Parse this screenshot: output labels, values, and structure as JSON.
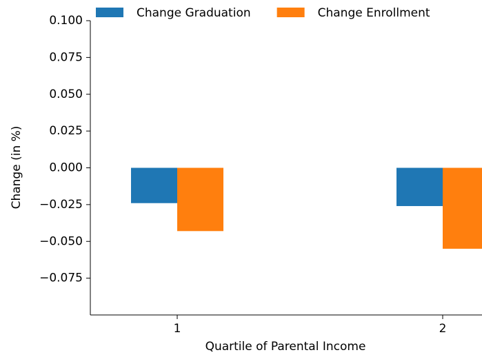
{
  "chart_data": {
    "type": "bar",
    "x_label": "Quartile of Parental Income",
    "y_label": "Change (in %)",
    "categories": [
      "1",
      "2"
    ],
    "series": [
      {
        "name": "Change Graduation",
        "color": "#1f77b4",
        "values": [
          -0.024,
          -0.026
        ]
      },
      {
        "name": "Change Enrollment",
        "color": "#ff7f0e",
        "values": [
          -0.043,
          -0.055
        ]
      }
    ],
    "ylim": [
      -0.1,
      0.1
    ],
    "yticks": [
      {
        "value": 0.1,
        "label": "0.100"
      },
      {
        "value": 0.075,
        "label": "0.075"
      },
      {
        "value": 0.05,
        "label": "0.050"
      },
      {
        "value": 0.025,
        "label": "0.025"
      },
      {
        "value": 0,
        "label": "0.000"
      },
      {
        "value": -0.025,
        "label": "−0.025"
      },
      {
        "value": -0.05,
        "label": "−0.050"
      },
      {
        "value": -0.075,
        "label": "−0.075"
      }
    ],
    "legend": "top"
  }
}
